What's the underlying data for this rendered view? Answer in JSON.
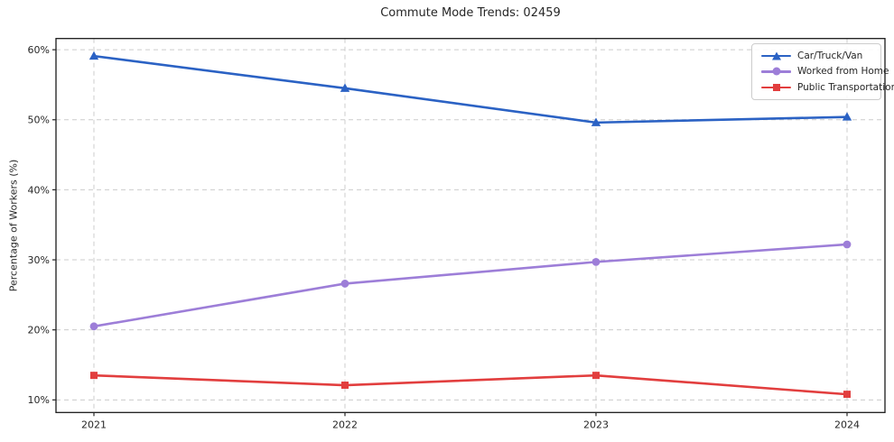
{
  "title": "Commute Mode Trends: 02459",
  "chart_data": {
    "type": "line",
    "title": "Commute Mode Trends: 02459",
    "xlabel": "",
    "ylabel": "Percentage of Workers (%)",
    "categories": [
      "2021",
      "2022",
      "2023",
      "2024"
    ],
    "series": [
      {
        "name": "Car/Truck/Van",
        "color": "#2b62c4",
        "marker": "triangle",
        "values": [
          59.1,
          54.5,
          49.6,
          50.4
        ]
      },
      {
        "name": "Worked from Home",
        "color": "#9d7ed8",
        "marker": "circle",
        "values": [
          20.5,
          26.6,
          29.7,
          32.2
        ]
      },
      {
        "name": "Public Transportation",
        "color": "#e23e3e",
        "marker": "square",
        "values": [
          13.5,
          12.1,
          13.5,
          10.8
        ]
      }
    ],
    "yticks": [
      10,
      20,
      30,
      40,
      50,
      60
    ],
    "ytick_labels": [
      "10%",
      "20%",
      "30%",
      "40%",
      "50%",
      "60%"
    ],
    "ylim": [
      8.2,
      61.6
    ],
    "grid": true,
    "grid_color": "#cccccc",
    "legend_position": "upper right"
  },
  "style": {
    "background": "#ffffff",
    "spine_color": "#1a1a1a",
    "text_color": "#262626",
    "tick_color": "#262626"
  }
}
